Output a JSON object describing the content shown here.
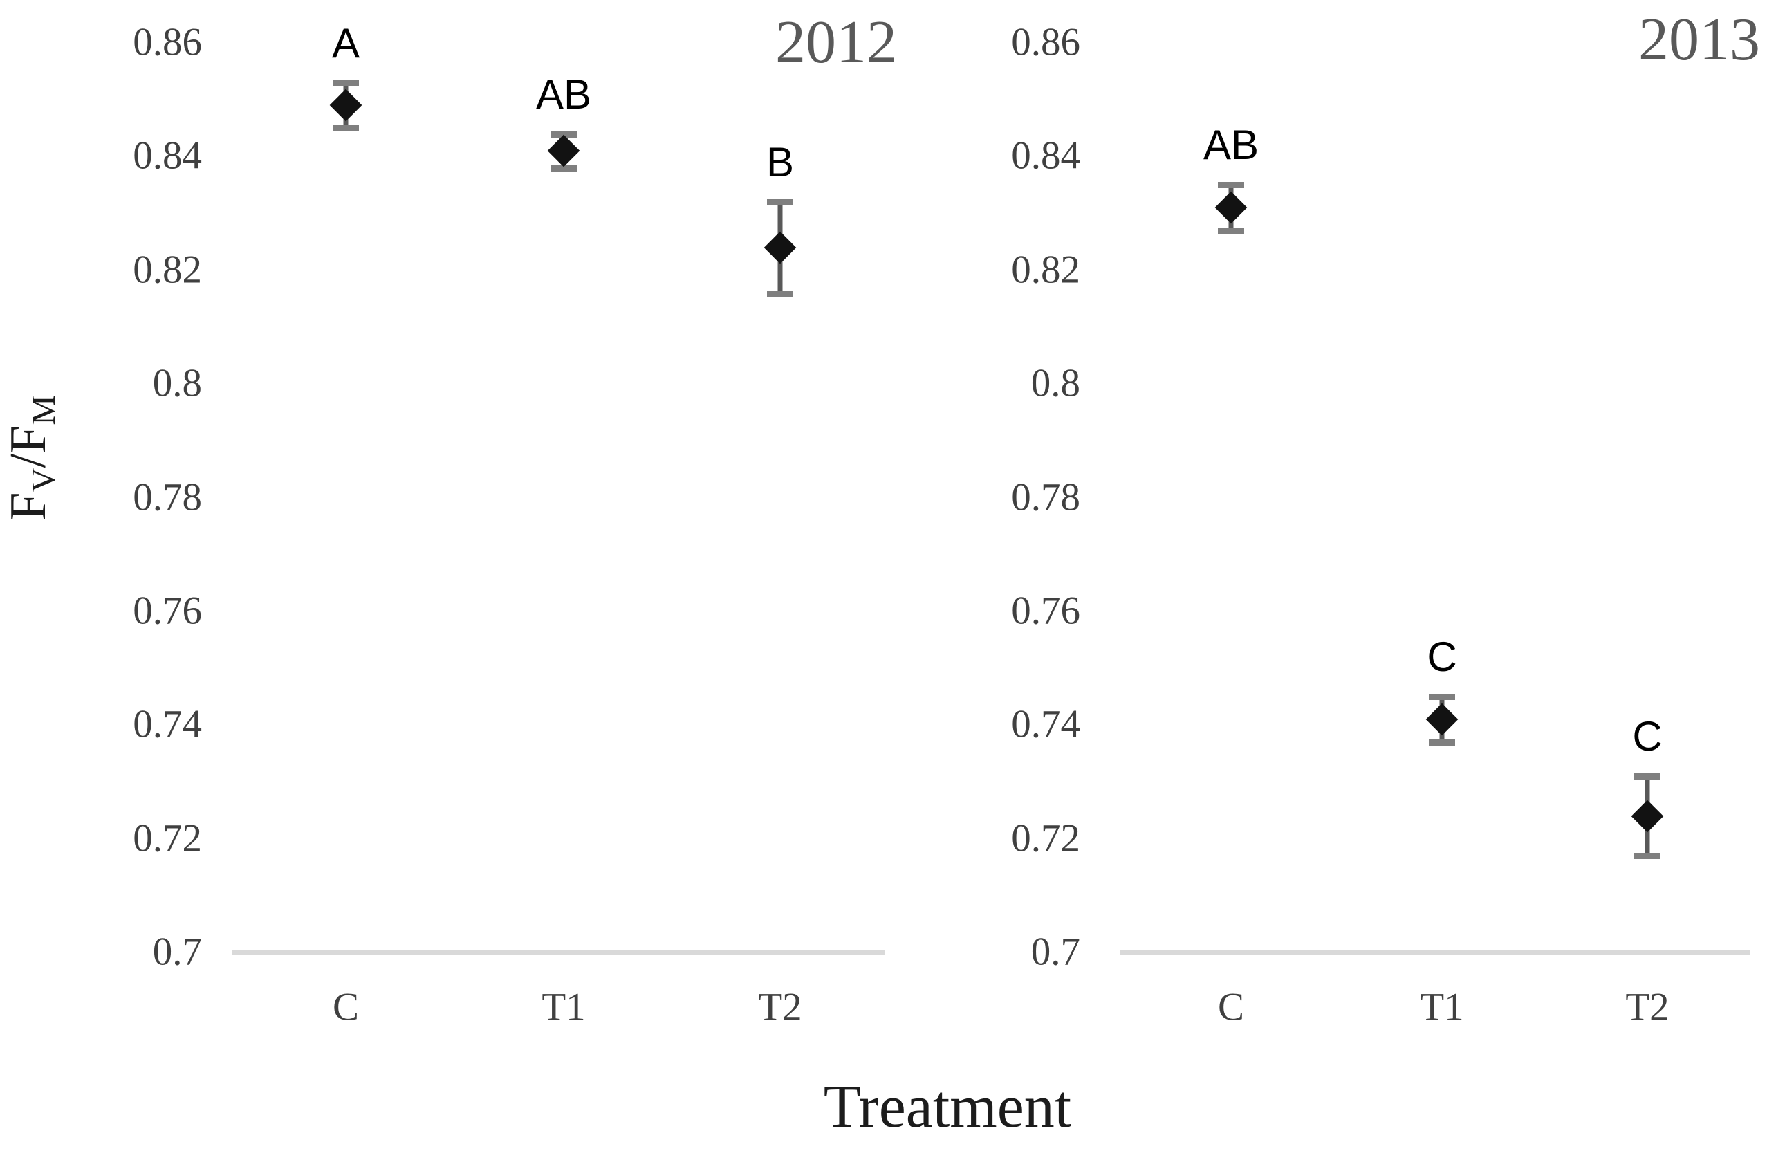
{
  "y_axis_title": {
    "base1": "F",
    "sub1": "V",
    "base2": "/F",
    "sub2": "M"
  },
  "x_axis_title": "Treatment",
  "colors": {
    "background": "#ffffff",
    "marker": "#121212",
    "error_line": "#595959",
    "error_cap": "#7f7f7f",
    "axis_line": "#d9d9d9",
    "tick_text": "#404040",
    "category_text": "#404040",
    "year_text": "#595959",
    "letter_text": "#000000",
    "axis_title_text": "#1c1c1c"
  },
  "chart_data": [
    {
      "type": "scatter",
      "title": "2012",
      "xlabel": "Treatment",
      "ylabel": "FV/FM",
      "categories": [
        "C",
        "T1",
        "T2"
      ],
      "series": [
        {
          "name": "Fv/Fm",
          "marker": "diamond",
          "values": [
            0.849,
            0.841,
            0.824
          ],
          "errors": [
            0.004,
            0.003,
            0.008
          ],
          "letters": [
            "A",
            "AB",
            "B"
          ]
        }
      ],
      "ylim": [
        0.7,
        0.86
      ],
      "yticks": [
        {
          "value": 0.86,
          "label": "0.86"
        },
        {
          "value": 0.84,
          "label": "0.84"
        },
        {
          "value": 0.82,
          "label": "0.82"
        },
        {
          "value": 0.8,
          "label": "0.8"
        },
        {
          "value": 0.78,
          "label": "0.78"
        },
        {
          "value": 0.76,
          "label": "0.76"
        },
        {
          "value": 0.74,
          "label": "0.74"
        },
        {
          "value": 0.72,
          "label": "0.72"
        },
        {
          "value": 0.7,
          "label": "0.7"
        }
      ],
      "grid": false,
      "legend_position": "none"
    },
    {
      "type": "scatter",
      "title": "2013",
      "xlabel": "Treatment",
      "ylabel": "FV/FM",
      "categories": [
        "C",
        "T1",
        "T2"
      ],
      "series": [
        {
          "name": "Fv/Fm",
          "marker": "diamond",
          "values": [
            0.831,
            0.741,
            0.724
          ],
          "errors": [
            0.004,
            0.004,
            0.007
          ],
          "letters": [
            "AB",
            "C",
            "C"
          ]
        }
      ],
      "ylim": [
        0.7,
        0.86
      ],
      "yticks": [
        {
          "value": 0.86,
          "label": "0.86"
        },
        {
          "value": 0.84,
          "label": "0.84"
        },
        {
          "value": 0.82,
          "label": "0.82"
        },
        {
          "value": 0.8,
          "label": "0.8"
        },
        {
          "value": 0.78,
          "label": "0.78"
        },
        {
          "value": 0.76,
          "label": "0.76"
        },
        {
          "value": 0.74,
          "label": "0.74"
        },
        {
          "value": 0.72,
          "label": "0.72"
        },
        {
          "value": 0.7,
          "label": "0.7"
        }
      ],
      "grid": false,
      "legend_position": "none"
    }
  ]
}
